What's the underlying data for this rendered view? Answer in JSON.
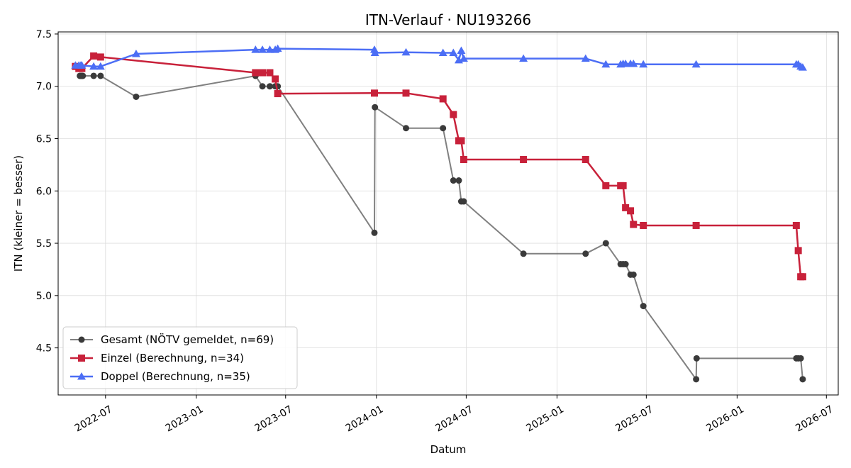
{
  "chart_data": {
    "type": "line",
    "title": "ITN-Verlauf · NU193266",
    "xlabel": "Datum",
    "ylabel": "ITN  (kleiner = besser)",
    "xlim": [
      "2022-03-27",
      "2026-07-25"
    ],
    "ylim": [
      4.05,
      7.52
    ],
    "grid": true,
    "legend_position": "lower-left",
    "x_ticks": [
      "2022-07",
      "2023-01",
      "2023-07",
      "2024-01",
      "2024-07",
      "2025-01",
      "2025-07",
      "2026-01",
      "2026-07"
    ],
    "y_ticks": [
      "4.5",
      "5.0",
      "5.5",
      "6.0",
      "6.5",
      "7.0",
      "7.5"
    ],
    "series": [
      {
        "name": "Gesamt (NÖTV gemeldet, n=69)",
        "color": "#555555",
        "marker": "circle",
        "x": [
          "2022-05-10",
          "2022-05-12",
          "2022-05-14",
          "2022-05-16",
          "2022-06-07",
          "2022-06-21",
          "2022-09-01",
          "2023-05-01",
          "2023-05-15",
          "2023-05-30",
          "2023-06-10",
          "2023-06-15",
          "2023-12-28",
          "2023-12-29",
          "2024-03-01",
          "2024-05-15",
          "2024-06-05",
          "2024-06-16",
          "2024-06-21",
          "2024-06-26",
          "2024-10-25",
          "2025-02-28",
          "2025-04-10",
          "2025-05-10",
          "2025-05-15",
          "2025-05-20",
          "2025-05-30",
          "2025-06-05",
          "2025-06-25",
          "2025-10-10",
          "2025-10-11",
          "2026-05-01",
          "2026-05-05",
          "2026-05-10",
          "2026-05-14"
        ],
        "y": [
          7.1,
          7.1,
          7.1,
          7.1,
          7.1,
          7.1,
          6.9,
          7.1,
          7.0,
          7.0,
          7.0,
          7.0,
          5.6,
          6.8,
          6.6,
          6.6,
          6.1,
          6.1,
          5.9,
          5.9,
          5.4,
          5.4,
          5.5,
          5.3,
          5.3,
          5.3,
          5.2,
          5.2,
          4.9,
          4.2,
          4.4,
          4.4,
          4.4,
          4.4,
          4.2
        ]
      },
      {
        "name": "Einzel (Berechnung, n=34)",
        "color": "#c8213a",
        "marker": "square",
        "x": [
          "2022-05-01",
          "2022-05-08",
          "2022-05-14",
          "2022-06-07",
          "2022-06-21",
          "2023-05-01",
          "2023-05-15",
          "2023-05-30",
          "2023-06-10",
          "2023-06-15",
          "2023-12-28",
          "2024-03-01",
          "2024-05-15",
          "2024-06-05",
          "2024-06-16",
          "2024-06-21",
          "2024-06-26",
          "2024-10-25",
          "2025-02-28",
          "2025-04-10",
          "2025-05-10",
          "2025-05-15",
          "2025-05-20",
          "2025-05-30",
          "2025-06-05",
          "2025-06-25",
          "2025-10-10",
          "2026-05-01",
          "2026-05-05",
          "2026-05-10",
          "2026-05-14"
        ],
        "y": [
          7.19,
          7.17,
          7.17,
          7.29,
          7.28,
          7.13,
          7.13,
          7.13,
          7.07,
          6.93,
          6.935,
          6.935,
          6.88,
          6.73,
          6.48,
          6.48,
          6.3,
          6.3,
          6.3,
          6.05,
          6.05,
          6.05,
          5.84,
          5.81,
          5.68,
          5.67,
          5.67,
          5.67,
          5.43,
          5.18,
          5.18
        ]
      },
      {
        "name": "Doppel (Berechnung, n=35)",
        "color": "#4c6ef5",
        "marker": "triangle",
        "x": [
          "2022-05-01",
          "2022-05-08",
          "2022-05-12",
          "2022-05-14",
          "2022-06-07",
          "2022-06-21",
          "2022-09-01",
          "2023-05-01",
          "2023-05-15",
          "2023-05-30",
          "2023-06-10",
          "2023-06-15",
          "2023-12-28",
          "2023-12-29",
          "2024-03-01",
          "2024-05-15",
          "2024-06-05",
          "2024-06-16",
          "2024-06-21",
          "2024-06-26",
          "2024-10-25",
          "2025-02-28",
          "2025-04-10",
          "2025-05-10",
          "2025-05-15",
          "2025-05-20",
          "2025-05-30",
          "2025-06-05",
          "2025-06-25",
          "2025-10-10",
          "2026-05-01",
          "2026-05-05",
          "2026-05-10",
          "2026-05-14"
        ],
        "y": [
          7.2,
          7.2,
          7.2,
          7.2,
          7.19,
          7.19,
          7.31,
          7.35,
          7.35,
          7.35,
          7.35,
          7.36,
          7.35,
          7.32,
          7.325,
          7.32,
          7.32,
          7.25,
          7.34,
          7.265,
          7.265,
          7.265,
          7.21,
          7.21,
          7.215,
          7.215,
          7.215,
          7.215,
          7.21,
          7.21,
          7.21,
          7.21,
          7.19,
          7.18
        ]
      }
    ]
  }
}
